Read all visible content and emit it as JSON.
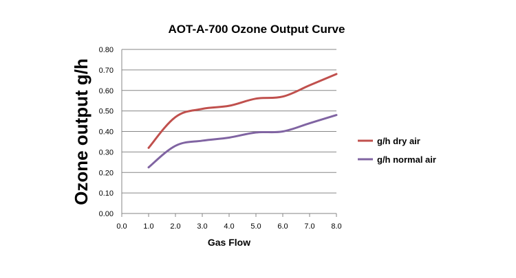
{
  "chart_data": {
    "type": "line",
    "title": "AOT-A-700 Ozone Output  Curve",
    "xlabel": "Gas Flow",
    "ylabel": "Ozone output  g/h",
    "x_ticks": [
      "0.0",
      "1.0",
      "2.0",
      "3.0",
      "4.0",
      "5.0",
      "6.0",
      "7.0",
      "8.0"
    ],
    "y_ticks": [
      "0.00",
      "0.10",
      "0.20",
      "0.30",
      "0.40",
      "0.50",
      "0.60",
      "0.70",
      "0.80"
    ],
    "xlim": [
      0,
      8
    ],
    "ylim": [
      0,
      0.8
    ],
    "grid": "horizontal",
    "legend_position": "right",
    "x": [
      1,
      2,
      3,
      4,
      5,
      6,
      7,
      8
    ],
    "series": [
      {
        "name": "g/h dry air",
        "color": "#c0504d",
        "values": [
          0.32,
          0.47,
          0.51,
          0.525,
          0.56,
          0.57,
          0.625,
          0.68
        ]
      },
      {
        "name": "g/h normal air",
        "color": "#8064a2",
        "values": [
          0.225,
          0.33,
          0.355,
          0.37,
          0.395,
          0.4,
          0.44,
          0.48
        ]
      }
    ]
  }
}
